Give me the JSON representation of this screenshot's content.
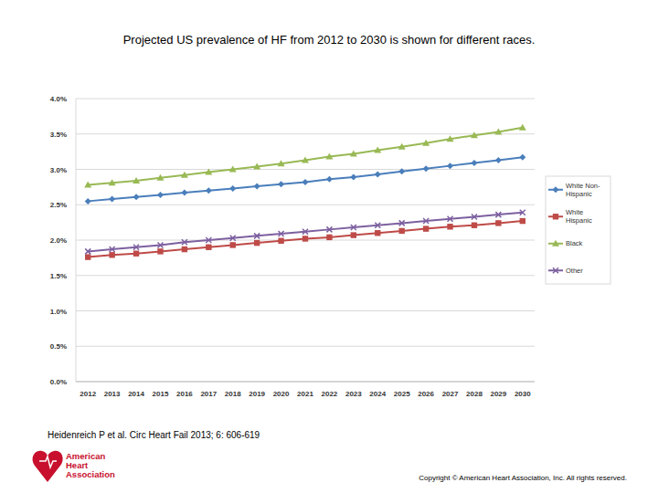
{
  "title": "Projected US prevalence of HF from 2012 to 2030 is shown for different races.",
  "citation": "Heidenreich P et al. Circ Heart Fail 2013; 6: 606-619",
  "logo": "American Heart Association",
  "copyright": "Copyright © American Heart Association, Inc. All rights reserved.",
  "chart_data": {
    "type": "line",
    "categories": [
      "2012",
      "2013",
      "2014",
      "2015",
      "2016",
      "2017",
      "2018",
      "2019",
      "2020",
      "2021",
      "2022",
      "2023",
      "2024",
      "2025",
      "2026",
      "2027",
      "2028",
      "2029",
      "2030"
    ],
    "series": [
      {
        "name": "White Non-Hispanic",
        "color": "#4a7ebb",
        "marker": "diamond",
        "values": [
          2.55,
          2.58,
          2.61,
          2.64,
          2.67,
          2.7,
          2.73,
          2.76,
          2.79,
          2.82,
          2.86,
          2.89,
          2.93,
          2.97,
          3.01,
          3.05,
          3.09,
          3.13,
          3.17
        ]
      },
      {
        "name": "White Hispanic",
        "color": "#be4b48",
        "marker": "square",
        "values": [
          1.76,
          1.79,
          1.81,
          1.84,
          1.87,
          1.9,
          1.93,
          1.96,
          1.99,
          2.02,
          2.04,
          2.07,
          2.1,
          2.13,
          2.16,
          2.19,
          2.21,
          2.24,
          2.27
        ]
      },
      {
        "name": "Black",
        "color": "#98b954",
        "marker": "triangle",
        "values": [
          2.78,
          2.81,
          2.84,
          2.88,
          2.92,
          2.96,
          3.0,
          3.04,
          3.08,
          3.13,
          3.18,
          3.22,
          3.27,
          3.32,
          3.37,
          3.43,
          3.48,
          3.53,
          3.59
        ]
      },
      {
        "name": "Other",
        "color": "#7d60a0",
        "marker": "x",
        "values": [
          1.84,
          1.87,
          1.9,
          1.93,
          1.97,
          2.0,
          2.03,
          2.06,
          2.09,
          2.12,
          2.15,
          2.18,
          2.21,
          2.24,
          2.27,
          2.3,
          2.33,
          2.36,
          2.39
        ]
      }
    ],
    "ylim": [
      0,
      4
    ],
    "yticks": [
      {
        "value": 0,
        "label": "0.0%"
      },
      {
        "value": 0.5,
        "label": "0.5%"
      },
      {
        "value": 1,
        "label": "1.0%"
      },
      {
        "value": 1.5,
        "label": "1.5%"
      },
      {
        "value": 2,
        "label": "2.0%"
      },
      {
        "value": 2.5,
        "label": "2.5%"
      },
      {
        "value": 3,
        "label": "3.0%"
      },
      {
        "value": 3.5,
        "label": "3.5%"
      },
      {
        "value": 4,
        "label": "4.0%"
      }
    ],
    "grid": true,
    "legend": "right"
  }
}
